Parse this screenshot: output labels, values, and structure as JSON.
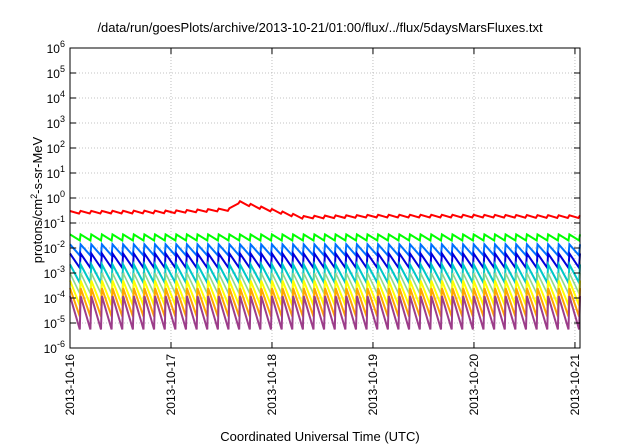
{
  "chart_data": {
    "type": "line",
    "title": "/data/run/goesPlots/archive/2013-10-21/01:00/flux/../flux/5daysMarsFluxes.txt",
    "xlabel": "Coordinated Universal Time (UTC)",
    "ylabel": {
      "prefix": "protons/cm",
      "sup": "2",
      "suffix": "-s-sr-MeV"
    },
    "xlim": [
      "2013-10-16",
      "2013-10-21.05"
    ],
    "ylim": [
      1e-06,
      1000000.0
    ],
    "yscale": "log",
    "grid": true,
    "x_ticks": [
      "2013-10-16",
      "2013-10-17",
      "2013-10-18",
      "2013-10-19",
      "2013-10-20",
      "2013-10-21"
    ],
    "y_ticks": [
      {
        "base": "10",
        "exp": "-6"
      },
      {
        "base": "10",
        "exp": "-5"
      },
      {
        "base": "10",
        "exp": "-4"
      },
      {
        "base": "10",
        "exp": "-3"
      },
      {
        "base": "10",
        "exp": "-2"
      },
      {
        "base": "10",
        "exp": "-1"
      },
      {
        "base": "10",
        "exp": "0"
      },
      {
        "base": "10",
        "exp": "1"
      },
      {
        "base": "10",
        "exp": "2"
      },
      {
        "base": "10",
        "exp": "3"
      },
      {
        "base": "10",
        "exp": "4"
      },
      {
        "base": "10",
        "exp": "5"
      },
      {
        "base": "10",
        "exp": "6"
      }
    ],
    "sawtooth": {
      "cycles": 48,
      "start": "2013-10-16",
      "end": "2013-10-21.05"
    },
    "series": [
      {
        "color": "#ff0000",
        "width": 2.0,
        "high": 0.3,
        "low": 0.24,
        "note_points": [
          [
            "2013-10-16",
            0.27
          ],
          [
            "2013-10-17",
            0.28
          ],
          [
            "2013-10-17.6",
            0.35
          ],
          [
            "2013-10-17.63",
            0.75
          ],
          [
            "2013-10-17.9",
            0.4
          ],
          [
            "2013-10-18.3",
            0.17
          ],
          [
            "2013-10-19",
            0.19
          ],
          [
            "2013-10-20",
            0.19
          ],
          [
            "2013-10-21.05",
            0.18
          ]
        ]
      },
      {
        "color": "#00ff00",
        "width": 2.0,
        "high": 0.035,
        "low": 0.02
      },
      {
        "color": "#0070ff",
        "width": 2.0,
        "high": 0.014,
        "low": 0.005
      },
      {
        "color": "#0000dd",
        "width": 2.0,
        "high": 0.006,
        "low": 0.0016
      },
      {
        "color": "#00c8c8",
        "width": 2.0,
        "high": 0.0022,
        "low": 0.0004
      },
      {
        "color": "#90d890",
        "width": 1.6,
        "high": 0.001,
        "low": 0.00015
      },
      {
        "color": "#ffff00",
        "width": 2.0,
        "high": 0.0005,
        "low": 5e-05
      },
      {
        "color": "#ffa500",
        "width": 2.0,
        "high": 0.00025,
        "low": 1.8e-05
      },
      {
        "color": "#9c3d8a",
        "width": 2.0,
        "high": 0.00012,
        "low": 5.5e-06
      }
    ]
  }
}
